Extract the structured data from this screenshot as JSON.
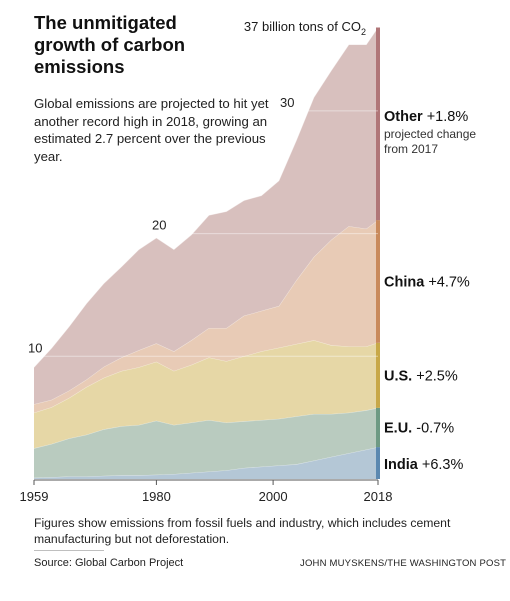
{
  "header": {
    "title": "The unmitigated growth of carbon emissions",
    "subtitle": "Global emissions are projected to hit yet another record high in 2018, growing an estimated 2.7 percent over the previous year."
  },
  "footer": {
    "note": "Figures show emissions from fossil fuels and industry, which includes cement manufacturing but not deforestation.",
    "source": "Source: Global Carbon Project",
    "credit": "JOHN MUYSKENS/THE WASHINGTON POST"
  },
  "chart_data": {
    "type": "area",
    "stacked": true,
    "unit_label": "37 billion tons of CO",
    "unit_subscript": "2",
    "x": [
      1959,
      1962,
      1965,
      1968,
      1971,
      1974,
      1977,
      1980,
      1983,
      1986,
      1989,
      1992,
      1995,
      1998,
      2001,
      2004,
      2007,
      2010,
      2013,
      2016,
      2018
    ],
    "x_ticks": [
      1959,
      1980,
      2000,
      2018
    ],
    "ylim": [
      0,
      37
    ],
    "y_ticks": [
      10,
      20,
      30
    ],
    "grid": true,
    "series": [
      {
        "name": "India",
        "change": "+6.3%",
        "color": "#b4c7d6",
        "edge": "#5b88b0",
        "values": [
          0.1,
          0.15,
          0.2,
          0.2,
          0.25,
          0.3,
          0.3,
          0.35,
          0.4,
          0.5,
          0.6,
          0.7,
          0.9,
          1.0,
          1.1,
          1.2,
          1.5,
          1.8,
          2.1,
          2.4,
          2.6
        ]
      },
      {
        "name": "E.U.",
        "change": "-0.7%",
        "color": "#b9cbbf",
        "edge": "#6e9a84",
        "values": [
          2.4,
          2.7,
          3.1,
          3.4,
          3.8,
          4.0,
          4.1,
          4.4,
          4.0,
          4.1,
          4.2,
          3.9,
          3.8,
          3.8,
          3.8,
          3.9,
          3.8,
          3.5,
          3.3,
          3.2,
          3.2
        ]
      },
      {
        "name": "U.S.",
        "change": "+2.5%",
        "color": "#e6d7a6",
        "edge": "#c8a848",
        "values": [
          2.9,
          3.0,
          3.3,
          3.9,
          4.2,
          4.5,
          4.7,
          4.8,
          4.4,
          4.7,
          5.1,
          5.0,
          5.3,
          5.6,
          5.8,
          5.9,
          6.0,
          5.6,
          5.4,
          5.2,
          5.3
        ]
      },
      {
        "name": "China",
        "change": "+4.7%",
        "color": "#e8cbb6",
        "edge": "#c98a5c",
        "values": [
          0.7,
          0.6,
          0.6,
          0.6,
          0.9,
          1.1,
          1.4,
          1.5,
          1.6,
          2.0,
          2.4,
          2.7,
          3.3,
          3.3,
          3.4,
          5.2,
          6.8,
          8.6,
          9.8,
          9.6,
          10.0
        ]
      },
      {
        "name": "Other",
        "change": "+1.8%",
        "change_note": "projected change from 2017",
        "color": "#d8c0be",
        "edge": "#b07678",
        "values": [
          3.0,
          4.2,
          5.2,
          6.2,
          6.8,
          7.4,
          8.2,
          8.6,
          8.3,
          8.6,
          9.2,
          9.5,
          9.4,
          9.4,
          10.2,
          11.4,
          13.0,
          13.8,
          14.8,
          15.0,
          15.7
        ]
      }
    ]
  }
}
